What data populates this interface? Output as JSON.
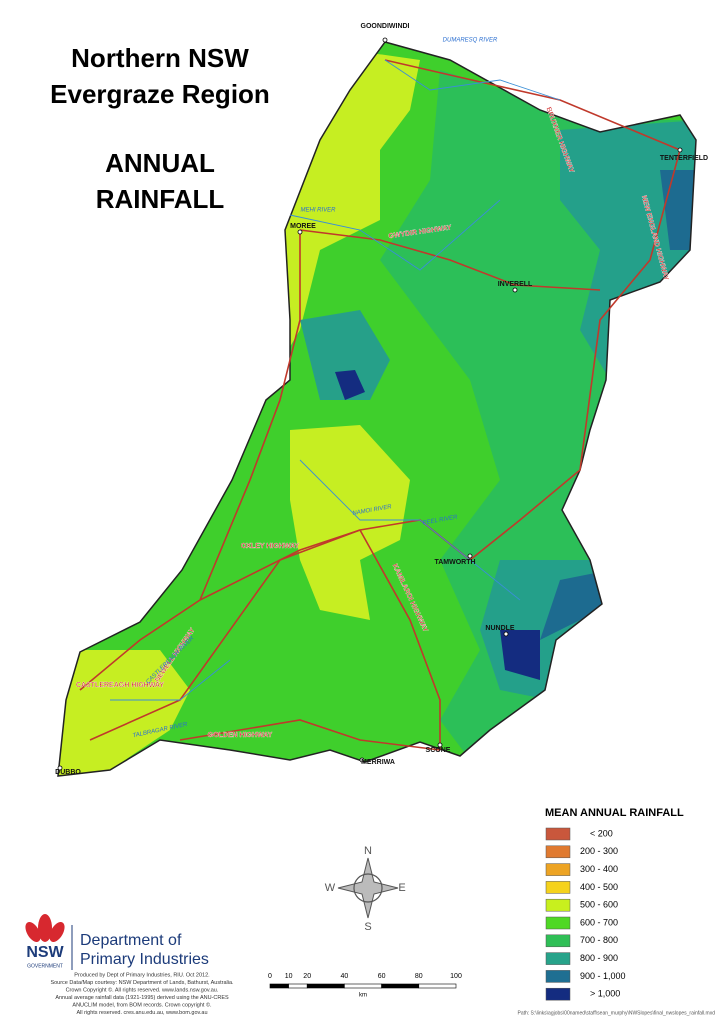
{
  "title": [
    "Northern NSW",
    "Evergraze Region"
  ],
  "subtitle": [
    "ANNUAL",
    "RAINFALL"
  ],
  "towns": [
    "GOONDIWINDI",
    "TENTERFIELD",
    "MOREE",
    "INVERELL",
    "TAMWORTH",
    "NUNDLE",
    "SCONE",
    "MERRIWA",
    "DUBBO"
  ],
  "highways": [
    "BRUXNER HIGHWAY",
    "GWYDIR HIGHWAY",
    "NEW ENGLAND HIGHWAY",
    "OXLEY HIGHWAY",
    "NEWELL HIGHWAY",
    "KAMILAROI HIGHWAY",
    "CASTLEREAGH HIGHWAY",
    "GOLDEN HIGHWAY"
  ],
  "rivers": [
    "DUMARESQ RIVER",
    "MEHI RIVER",
    "PEEL RIVER",
    "NAMOI RIVER",
    "TALBRAGAR RIVER",
    "CASTLEREAGH RIVER"
  ],
  "legend": {
    "title": "MEAN ANNUAL RAINFALL",
    "items": [
      {
        "label": "< 200",
        "color": "#c9573c"
      },
      {
        "label": "200 -    300",
        "color": "#e07a30"
      },
      {
        "label": "300 -    400",
        "color": "#eda424"
      },
      {
        "label": "400 -    500",
        "color": "#f5d21c"
      },
      {
        "label": "500 -    600",
        "color": "#c8f01e"
      },
      {
        "label": "600 -    700",
        "color": "#4fd824"
      },
      {
        "label": "700 -    800",
        "color": "#2fbf56"
      },
      {
        "label": "800 -    900",
        "color": "#27a38a"
      },
      {
        "label": "900 - 1,000",
        "color": "#1f6f92"
      },
      {
        "label": "> 1,000",
        "color": "#142c80"
      }
    ]
  },
  "compass": {
    "n": "N",
    "e": "E",
    "s": "S",
    "w": "W"
  },
  "scale": {
    "ticks": [
      0,
      10,
      20,
      40,
      60,
      80,
      100
    ],
    "unit": "km"
  },
  "footer": {
    "logo": "NSW",
    "logo_sub": "GOVERNMENT",
    "department": [
      "Department of",
      "Primary Industries"
    ],
    "credits": [
      "Produced by Dept of Primary Industries, RIU. Oct 2012.",
      "Source Data/Map courtesy: NSW Department of Lands, Bathurst, Australia.",
      "Crown Copyright ©. All rights reserved. www.lands.nsw.gov.au.",
      "Annual average rainfall data (1921-1995) derived using the ANU-CRES",
      "ANUCLIM model, from BOM records. Crown copyright ©.",
      "All rights reserved. cres.anu.edu.au, www.bom.gov.au"
    ],
    "path": "Path: S:\\links\\agjobs\\00named\\staff\\sean_murphy\\NWSlopes\\final_nwslopes_rainfall.mxd"
  }
}
